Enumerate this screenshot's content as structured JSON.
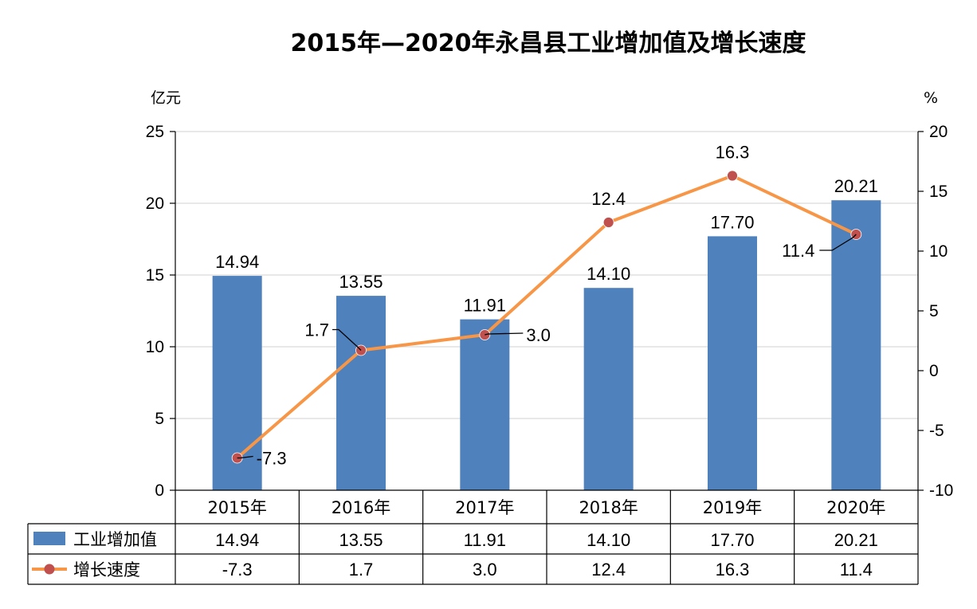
{
  "chart_data": {
    "type": "bar",
    "title": "2015年—2020年永昌县工业增加值及增长速度",
    "categories": [
      "2015年",
      "2016年",
      "2017年",
      "2018年",
      "2019年",
      "2020年"
    ],
    "y_left_unit": "亿元",
    "y_right_unit": "%",
    "y_left_range": [
      0,
      25
    ],
    "y_left_ticks": [
      0,
      5,
      10,
      15,
      20,
      25
    ],
    "y_right_range": [
      -10,
      20
    ],
    "y_right_ticks": [
      -10,
      -5,
      0,
      5,
      10,
      15,
      20
    ],
    "grid": true,
    "legend_position": "bottom-left (inside data table)",
    "series": [
      {
        "name": "工业增加值",
        "type": "bar",
        "axis": "left",
        "color": "#4F81BD",
        "values": [
          14.94,
          13.55,
          11.91,
          14.1,
          17.7,
          20.21
        ],
        "labels": [
          "14.94",
          "13.55",
          "11.91",
          "14.10",
          "17.70",
          "20.21"
        ]
      },
      {
        "name": "增长速度",
        "type": "line",
        "axis": "right",
        "color": "#F79646",
        "marker_color": "#C0504D",
        "values": [
          -7.3,
          1.7,
          3.0,
          12.4,
          16.3,
          11.4
        ],
        "labels": [
          "-7.3",
          "1.7",
          "3.0",
          "12.4",
          "16.3",
          "11.4"
        ]
      }
    ]
  }
}
